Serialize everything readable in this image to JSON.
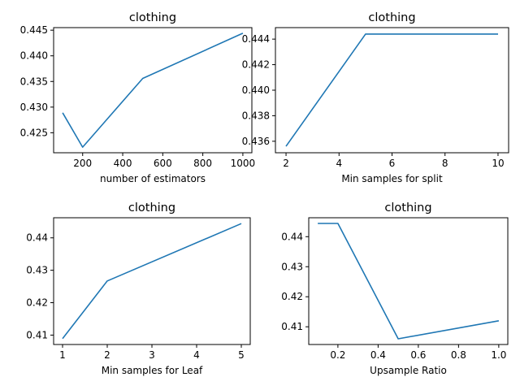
{
  "colors": {
    "series": "#1f77b4"
  },
  "chart_data": [
    {
      "type": "line",
      "title": "clothing",
      "xlabel": "number of estimators",
      "ylabel": "",
      "x": [
        100,
        200,
        500,
        1000
      ],
      "series": [
        {
          "values": [
            0.4289,
            0.4222,
            0.4356,
            0.4444
          ]
        }
      ],
      "xlim": [
        55,
        1045
      ],
      "ylim": [
        0.4211,
        0.4455
      ],
      "xticks": [
        200,
        400,
        600,
        800,
        1000
      ],
      "xtick_labels": [
        "200",
        "400",
        "600",
        "800",
        "1000"
      ],
      "yticks": [
        0.425,
        0.43,
        0.435,
        0.44,
        0.445
      ],
      "ytick_labels": [
        "0.425",
        "0.430",
        "0.435",
        "0.440",
        "0.445"
      ],
      "grid": false
    },
    {
      "type": "line",
      "title": "clothing",
      "xlabel": "Min samples for split",
      "ylabel": "",
      "x": [
        2,
        5,
        10
      ],
      "series": [
        {
          "values": [
            0.4356,
            0.4444,
            0.4444
          ]
        }
      ],
      "xlim": [
        1.6,
        10.4
      ],
      "ylim": [
        0.4351,
        0.4449
      ],
      "xticks": [
        2,
        4,
        6,
        8,
        10
      ],
      "xtick_labels": [
        "2",
        "4",
        "6",
        "8",
        "10"
      ],
      "yticks": [
        0.436,
        0.438,
        0.44,
        0.442,
        0.444
      ],
      "ytick_labels": [
        "0.436",
        "0.438",
        "0.440",
        "0.442",
        "0.444"
      ],
      "grid": false
    },
    {
      "type": "line",
      "title": "clothing",
      "xlabel": "Min samples for Leaf",
      "ylabel": "",
      "x": [
        1,
        2,
        5
      ],
      "series": [
        {
          "values": [
            0.4089,
            0.4267,
            0.4444
          ]
        }
      ],
      "xlim": [
        0.8,
        5.2
      ],
      "ylim": [
        0.4071,
        0.4462
      ],
      "xticks": [
        1,
        2,
        3,
        4,
        5
      ],
      "xtick_labels": [
        "1",
        "2",
        "3",
        "4",
        "5"
      ],
      "yticks": [
        0.41,
        0.42,
        0.43,
        0.44
      ],
      "ytick_labels": [
        "0.41",
        "0.42",
        "0.43",
        "0.44"
      ],
      "grid": false
    },
    {
      "type": "line",
      "title": "clothing",
      "xlabel": "Upsample Ratio",
      "ylabel": "",
      "x": [
        0.1,
        0.2,
        0.5,
        1.0
      ],
      "series": [
        {
          "values": [
            0.4444,
            0.4444,
            0.406,
            0.412
          ]
        }
      ],
      "xlim": [
        0.055,
        1.045
      ],
      "ylim": [
        0.4041,
        0.4463
      ],
      "xticks": [
        0.2,
        0.4,
        0.6,
        0.8,
        1.0
      ],
      "xtick_labels": [
        "0.2",
        "0.4",
        "0.6",
        "0.8",
        "1.0"
      ],
      "yticks": [
        0.41,
        0.42,
        0.43,
        0.44
      ],
      "ytick_labels": [
        "0.41",
        "0.42",
        "0.43",
        "0.44"
      ],
      "grid": false
    }
  ]
}
